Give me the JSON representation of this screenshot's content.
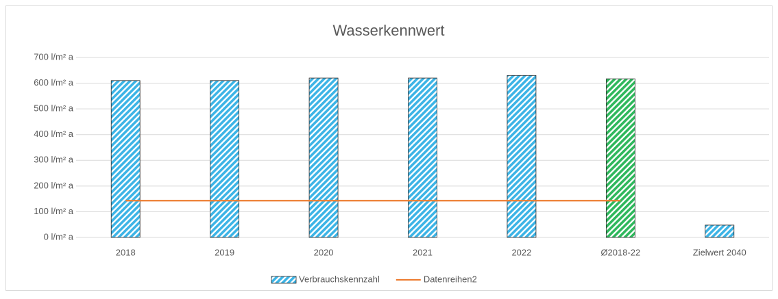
{
  "chart_data": {
    "type": "bar",
    "title": "Wasserkennwert",
    "categories": [
      "2018",
      "2019",
      "2020",
      "2021",
      "2022",
      "Ø2018-22",
      "Zielwert 2040"
    ],
    "series": [
      {
        "name": "Verbrauchskennzahl",
        "type": "bar",
        "color": "#3cb4e6",
        "pattern": "hatch",
        "colors": [
          "#3cb4e6",
          "#3cb4e6",
          "#3cb4e6",
          "#3cb4e6",
          "#3cb4e6",
          "#2eb85c",
          "#3cb4e6"
        ],
        "values": [
          610,
          610,
          620,
          620,
          630,
          617,
          48
        ]
      },
      {
        "name": "Datenreihen2",
        "type": "line",
        "color": "#ed7d31",
        "values": [
          143,
          143,
          143,
          143,
          143,
          143,
          null
        ]
      }
    ],
    "ylim": [
      0,
      700
    ],
    "yticks": [
      {
        "value": 0,
        "label": "0 l/m² a"
      },
      {
        "value": 100,
        "label": "100 l/m² a"
      },
      {
        "value": 200,
        "label": "200 l/m² a"
      },
      {
        "value": 300,
        "label": "300 l/m² a"
      },
      {
        "value": 400,
        "label": "400 l/m² a"
      },
      {
        "value": 500,
        "label": "500 l/m² a"
      },
      {
        "value": 600,
        "label": "600 l/m² a"
      },
      {
        "value": 700,
        "label": "700 l/m² a"
      }
    ],
    "grid": true,
    "legend": "bottom"
  }
}
